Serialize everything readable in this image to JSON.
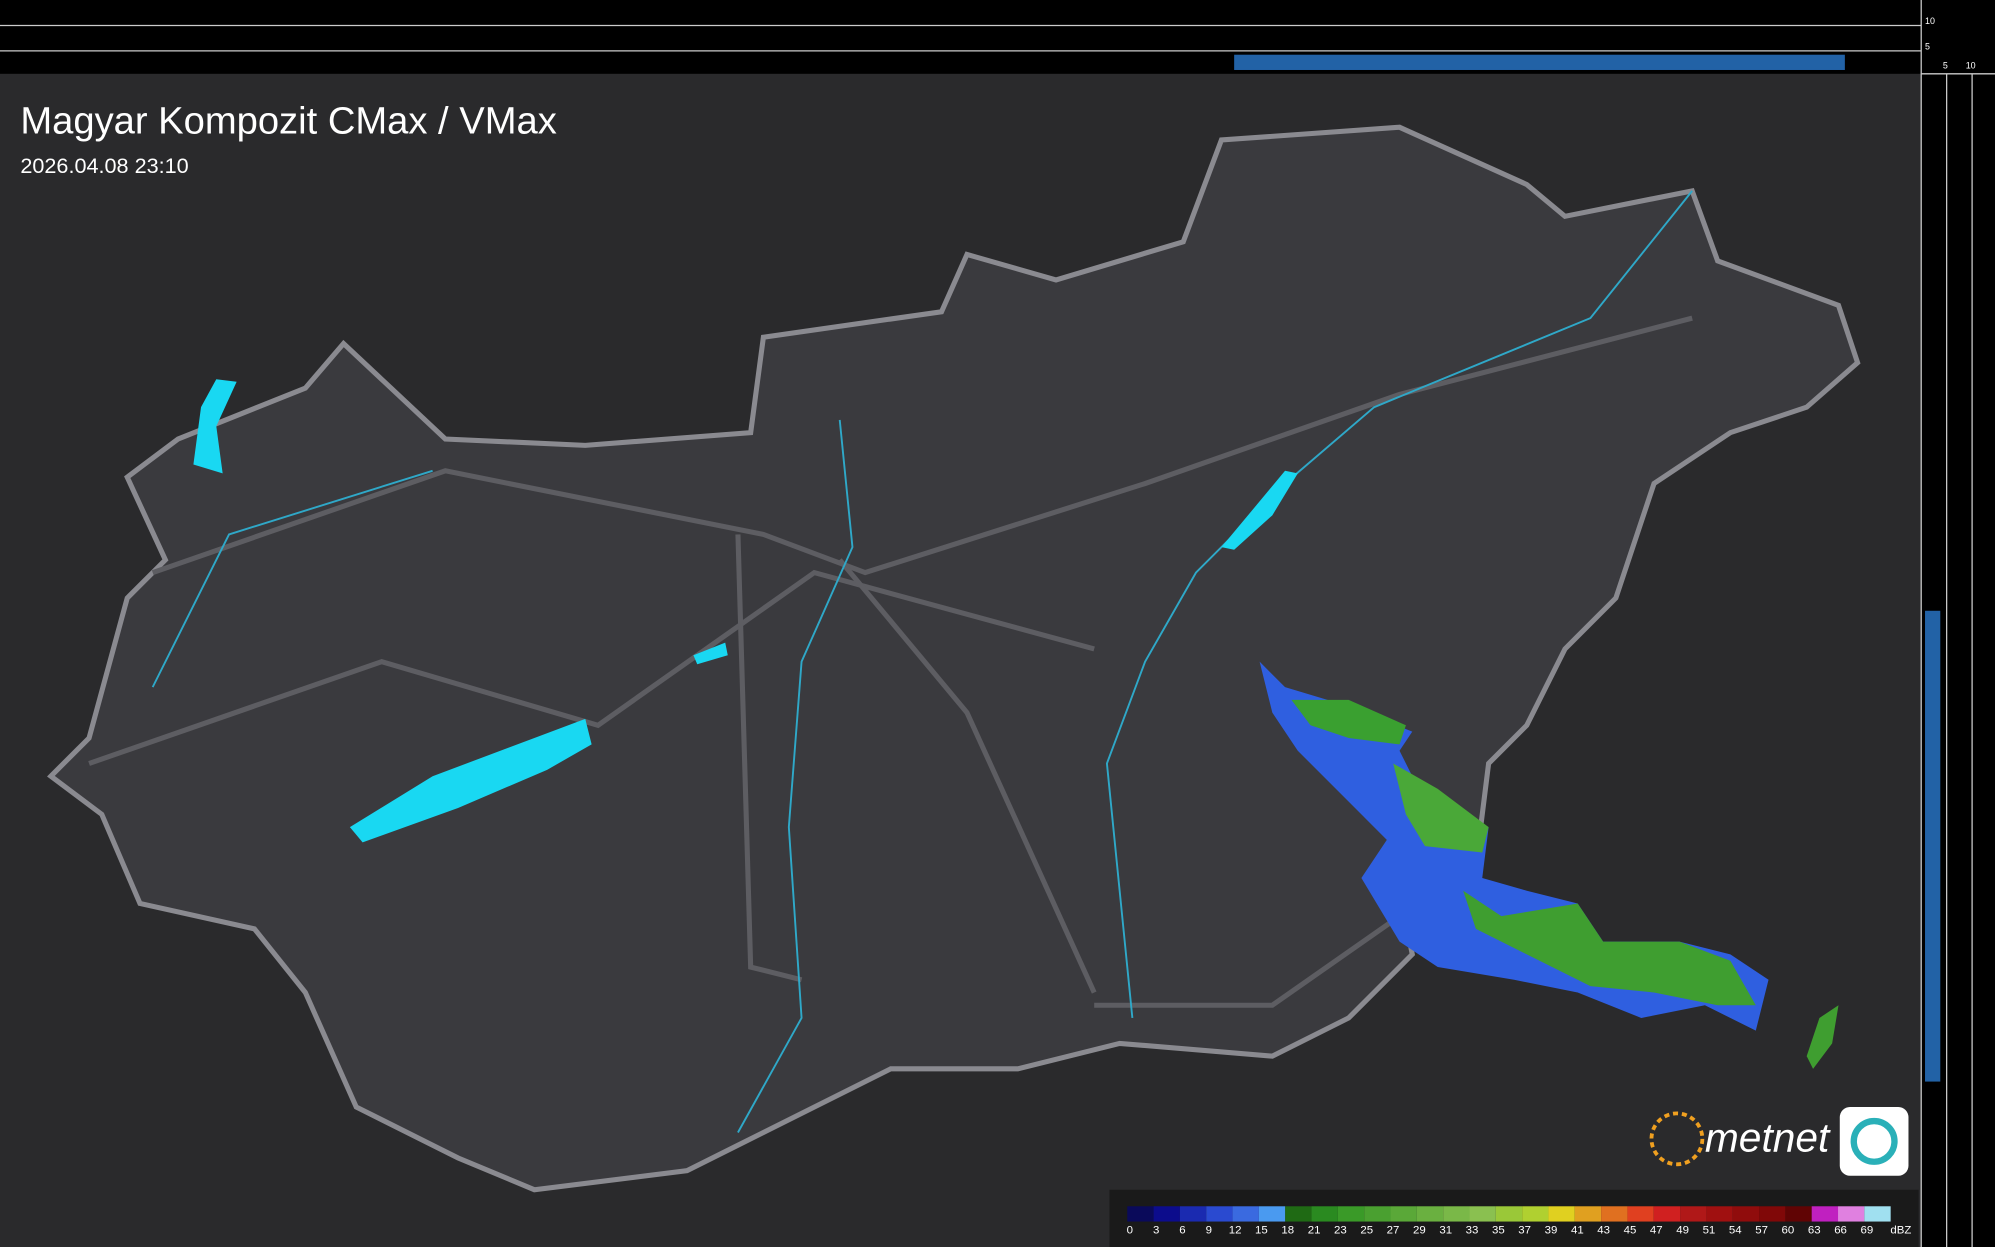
{
  "header": {
    "title": "Magyar Kompozit CMax / VMax",
    "timestamp": "2026.04.08 23:10"
  },
  "logo": "metnet",
  "side_scale": {
    "top": [
      "10",
      "5"
    ],
    "right": [
      "5",
      "10"
    ]
  },
  "legend": {
    "unit": "dBZ",
    "levels": [
      {
        "value": 0,
        "color": "#0a0a5a"
      },
      {
        "value": 3,
        "color": "#0c0c8c"
      },
      {
        "value": 6,
        "color": "#1a2ab0"
      },
      {
        "value": 9,
        "color": "#2a4ad0"
      },
      {
        "value": 12,
        "color": "#3a6ae0"
      },
      {
        "value": 15,
        "color": "#4a9af0"
      },
      {
        "value": 18,
        "color": "#1f6a14"
      },
      {
        "value": 21,
        "color": "#2a8a20"
      },
      {
        "value": 23,
        "color": "#3a9a28"
      },
      {
        "value": 25,
        "color": "#4aa030"
      },
      {
        "value": 27,
        "color": "#5aa838"
      },
      {
        "value": 29,
        "color": "#6ab040"
      },
      {
        "value": 31,
        "color": "#7ab848"
      },
      {
        "value": 33,
        "color": "#8ac050"
      },
      {
        "value": 35,
        "color": "#9ac838"
      },
      {
        "value": 37,
        "color": "#b0d030"
      },
      {
        "value": 39,
        "color": "#e0d020"
      },
      {
        "value": 41,
        "color": "#e0a020"
      },
      {
        "value": 43,
        "color": "#e07020"
      },
      {
        "value": 45,
        "color": "#e04020"
      },
      {
        "value": 47,
        "color": "#d02020"
      },
      {
        "value": 49,
        "color": "#b01818"
      },
      {
        "value": 51,
        "color": "#a01010"
      },
      {
        "value": 54,
        "color": "#900c0c"
      },
      {
        "value": 57,
        "color": "#800808"
      },
      {
        "value": 60,
        "color": "#600404"
      },
      {
        "value": 63,
        "color": "#c020c0"
      },
      {
        "value": 66,
        "color": "#e080e0"
      },
      {
        "value": 69,
        "color": "#a0e0f0"
      }
    ]
  }
}
